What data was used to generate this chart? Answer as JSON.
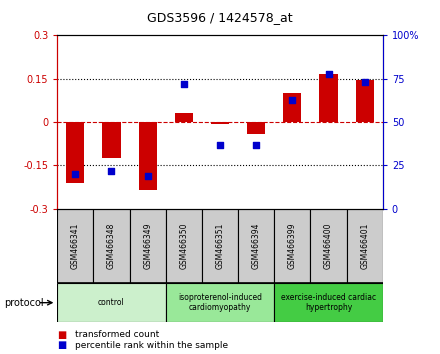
{
  "title": "GDS3596 / 1424578_at",
  "samples": [
    "GSM466341",
    "GSM466348",
    "GSM466349",
    "GSM466350",
    "GSM466351",
    "GSM466394",
    "GSM466399",
    "GSM466400",
    "GSM466401"
  ],
  "transformed_count": [
    -0.21,
    -0.125,
    -0.235,
    0.03,
    -0.005,
    -0.04,
    0.1,
    0.165,
    0.145
  ],
  "percentile_rank": [
    20,
    22,
    19,
    72,
    37,
    37,
    63,
    78,
    73
  ],
  "ylim_left": [
    -0.3,
    0.3
  ],
  "ylim_right": [
    0,
    100
  ],
  "yticks_left": [
    -0.3,
    -0.15,
    0,
    0.15,
    0.3
  ],
  "yticks_right": [
    0,
    25,
    50,
    75,
    100
  ],
  "ytick_labels_left": [
    "-0.3",
    "-0.15",
    "0",
    "0.15",
    "0.3"
  ],
  "ytick_labels_right": [
    "0",
    "25",
    "50",
    "75",
    "100%"
  ],
  "bar_color": "#cc0000",
  "dot_color": "#0000cc",
  "zero_line_color": "#cc0000",
  "groups": [
    {
      "label": "control",
      "start": 0,
      "end": 3,
      "color": "#ccf0cc"
    },
    {
      "label": "isoproterenol-induced\ncardiomyopathy",
      "start": 3,
      "end": 6,
      "color": "#99e899"
    },
    {
      "label": "exercise-induced cardiac\nhypertrophy",
      "start": 6,
      "end": 9,
      "color": "#44cc44"
    }
  ],
  "protocol_label": "protocol",
  "legend_red": "transformed count",
  "legend_blue": "percentile rank within the sample",
  "bar_width": 0.5,
  "sample_box_color": "#cccccc",
  "fig_width": 4.4,
  "fig_height": 3.54,
  "dpi": 100
}
